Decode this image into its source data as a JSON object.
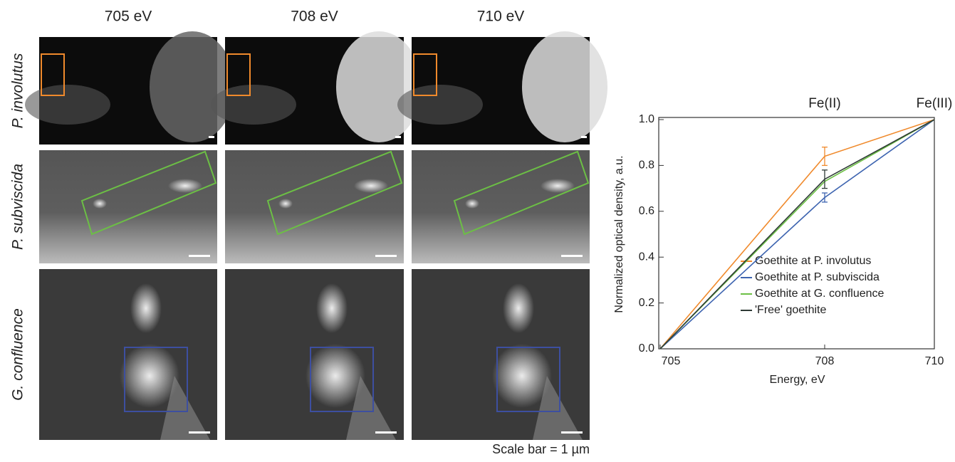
{
  "panels": {
    "columns": [
      "705 eV",
      "708 eV",
      "710 eV"
    ],
    "rows": [
      "P. involutus",
      "P. subviscida",
      "G. confluence"
    ],
    "scale_bar": "Scale bar = 1 µm"
  },
  "chart_data": {
    "type": "line",
    "x_label": "Energy, eV",
    "y_label": "Normalized optical density, a.u.",
    "x": [
      705,
      708,
      710
    ],
    "xlim": [
      705,
      710
    ],
    "xticks": [
      705,
      708,
      710
    ],
    "ylim": [
      0,
      1
    ],
    "yticks": [
      {
        "value": 0,
        "label": "0.0"
      },
      {
        "value": 0.2,
        "label": "0.2"
      },
      {
        "value": 0.4,
        "label": "0.4"
      },
      {
        "value": 0.6,
        "label": "0.6"
      },
      {
        "value": 0.8,
        "label": "0.8"
      },
      {
        "value": 1,
        "label": "1.0"
      }
    ],
    "annotations": [
      {
        "text": "Fe(II)",
        "x": 708
      },
      {
        "text": "Fe(III)",
        "x": 710
      }
    ],
    "series": [
      {
        "name": "Goethite at P. involutus",
        "color": "#f08a2c",
        "values": [
          0,
          0.84,
          1
        ],
        "errors": [
          null,
          0.04,
          null
        ]
      },
      {
        "name": "Goethite at P. subviscida",
        "color": "#3d64b0",
        "values": [
          0,
          0.66,
          1
        ],
        "errors": [
          null,
          0.02,
          null
        ]
      },
      {
        "name": "Goethite at G. confluence",
        "color": "#6cbf45",
        "values": [
          0,
          0.73,
          1
        ],
        "errors": [
          null,
          null,
          null
        ]
      },
      {
        "name": "'Free' goethite",
        "color": "#2e3a35",
        "values": [
          0,
          0.74,
          1
        ],
        "errors": [
          null,
          0.04,
          null
        ]
      }
    ]
  }
}
